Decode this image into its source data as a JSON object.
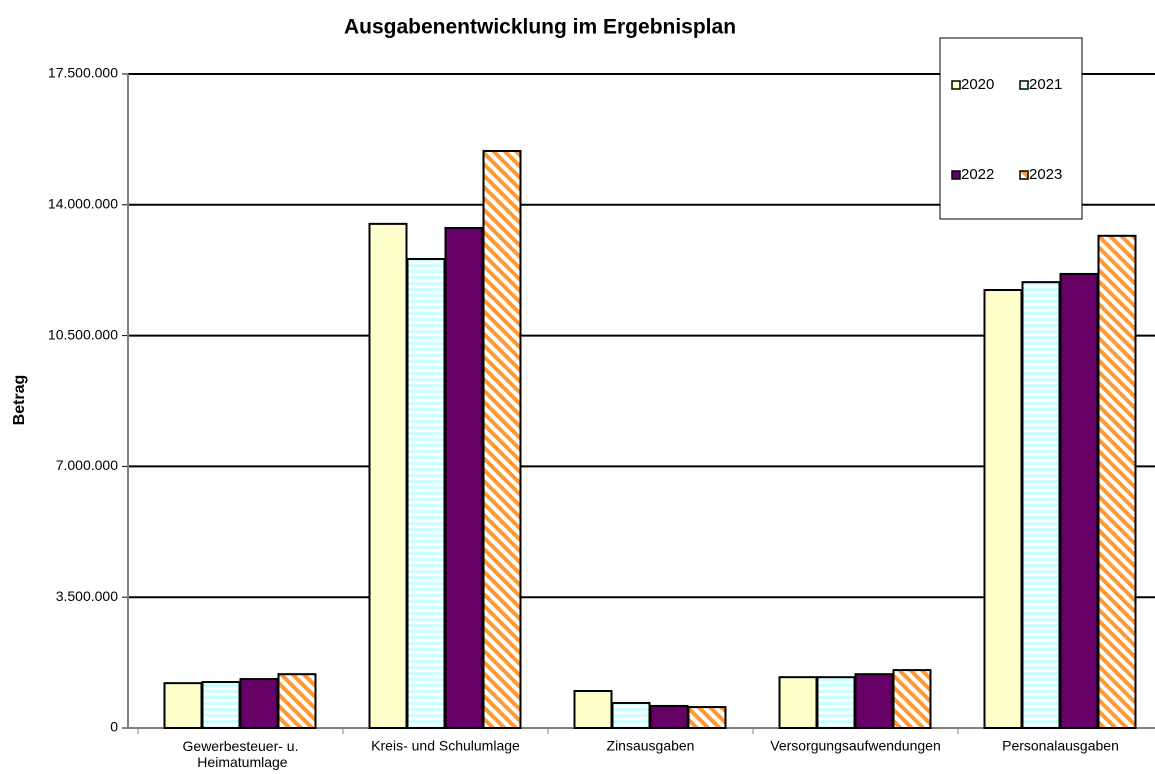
{
  "chart_data": {
    "type": "bar",
    "title": "Ausgabenentwicklung im Ergebnisplan",
    "ylabel": "Betrag",
    "categories": [
      "Gewerbesteuer- u. Heimatumlage",
      "Kreis- und Schulumlage",
      "Zinsausgaben",
      "Versorgungsaufwendungen",
      "Personalausgaben"
    ],
    "series": [
      {
        "name": "2020",
        "color": "#ffffcc",
        "pattern": "solid",
        "values": [
          1200000,
          13490000,
          990000,
          1360000,
          11720000
        ]
      },
      {
        "name": "2021",
        "color": "#ccffff",
        "pattern": "horizontal",
        "values": [
          1230000,
          12550000,
          670000,
          1360000,
          11930000
        ]
      },
      {
        "name": "2022",
        "color": "#660066",
        "pattern": "solid",
        "values": [
          1310000,
          13380000,
          590000,
          1440000,
          12150000
        ]
      },
      {
        "name": "2023",
        "color": "#ff9933",
        "pattern": "diagonal",
        "values": [
          1440000,
          15440000,
          560000,
          1550000,
          13170000
        ]
      }
    ],
    "ylim": [
      0,
      17500000
    ],
    "yticks": [
      0,
      {
        "value": 3500000,
        "label": "3.500.000"
      },
      {
        "value": 7000000,
        "label": "7.000.000"
      },
      {
        "value": 10500000,
        "label": "10.500.000"
      },
      {
        "value": 14000000,
        "label": "14.000.000"
      },
      {
        "value": 17500000,
        "label": "17.500.000"
      }
    ],
    "grid": true,
    "legend": "top-right"
  }
}
